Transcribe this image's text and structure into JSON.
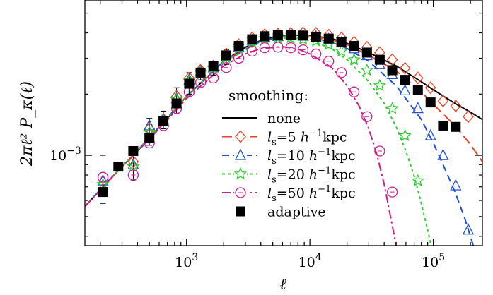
{
  "chart_data": {
    "type": "line",
    "xlabel": "ℓ",
    "ylabel": "2πℓ² P_κ(ℓ)",
    "xscale": "log",
    "yscale": "log",
    "xlim": [
      150,
      250000
    ],
    "ylim": [
      0.00036,
      0.0058
    ],
    "x_ticks": [
      {
        "value": 1000,
        "base": "10",
        "exp": "3"
      },
      {
        "value": 10000,
        "base": "10",
        "exp": "4"
      },
      {
        "value": 100000,
        "base": "10",
        "exp": "5"
      }
    ],
    "y_ticks": [
      {
        "value": 0.001,
        "base": "10",
        "exp": "−3"
      }
    ],
    "legend": {
      "title": "smoothing:",
      "position": "center-right",
      "entries": [
        {
          "series": "none",
          "label": "none"
        },
        {
          "series": "ls5",
          "label": "=5",
          "units": "kpc"
        },
        {
          "series": "ls10",
          "label": "=10",
          "units": "kpc"
        },
        {
          "series": "ls20",
          "label": "=20",
          "units": "kpc"
        },
        {
          "series": "ls50",
          "label": "=50",
          "units": "kpc"
        },
        {
          "series": "adaptive",
          "label": "adaptive"
        }
      ]
    },
    "curves": [
      {
        "key": "none",
        "color": "#000000",
        "dash": "",
        "width": 2,
        "points": [
          [
            150,
            0.00056
          ],
          [
            210,
            0.0007
          ],
          [
            300,
            0.00088
          ],
          [
            400,
            0.00105
          ],
          [
            500,
            0.00122
          ],
          [
            700,
            0.00152
          ],
          [
            1000,
            0.00195
          ],
          [
            1500,
            0.00245
          ],
          [
            2000,
            0.0029
          ],
          [
            3000,
            0.0034
          ],
          [
            4000,
            0.00367
          ],
          [
            5000,
            0.0038
          ],
          [
            6000,
            0.00387
          ],
          [
            8000,
            0.0039
          ],
          [
            10000,
            0.00388
          ],
          [
            15000,
            0.00375
          ],
          [
            20000,
            0.00355
          ],
          [
            30000,
            0.0032
          ],
          [
            50000,
            0.00275
          ],
          [
            80000,
            0.0023
          ],
          [
            100000,
            0.0021
          ],
          [
            150000,
            0.0018
          ],
          [
            200000,
            0.00163
          ],
          [
            250000,
            0.0015
          ]
        ]
      },
      {
        "key": "ls5",
        "color": "#e8421e",
        "dash": "14,6",
        "width": 2,
        "points": [
          [
            150,
            0.00056
          ],
          [
            300,
            0.00088
          ],
          [
            500,
            0.00122
          ],
          [
            1000,
            0.00195
          ],
          [
            2000,
            0.0029
          ],
          [
            4000,
            0.00365
          ],
          [
            6000,
            0.00386
          ],
          [
            8000,
            0.00389
          ],
          [
            10000,
            0.00386
          ],
          [
            15000,
            0.0037
          ],
          [
            20000,
            0.0035
          ],
          [
            30000,
            0.0031
          ],
          [
            50000,
            0.0026
          ],
          [
            80000,
            0.00205
          ],
          [
            100000,
            0.00178
          ],
          [
            150000,
            0.0014
          ],
          [
            200000,
            0.00113
          ],
          [
            250000,
            0.00093
          ]
        ]
      },
      {
        "key": "ls10",
        "color": "#1f4fd1",
        "dash": "10,6",
        "width": 2,
        "points": [
          [
            150,
            0.00056
          ],
          [
            300,
            0.00088
          ],
          [
            500,
            0.00122
          ],
          [
            1000,
            0.00195
          ],
          [
            2000,
            0.0029
          ],
          [
            4000,
            0.00364
          ],
          [
            6000,
            0.00384
          ],
          [
            8000,
            0.00386
          ],
          [
            10000,
            0.0038
          ],
          [
            15000,
            0.0036
          ],
          [
            20000,
            0.00335
          ],
          [
            30000,
            0.0029
          ],
          [
            50000,
            0.0022
          ],
          [
            80000,
            0.0015
          ],
          [
            100000,
            0.00115
          ],
          [
            120000,
            0.0009
          ],
          [
            150000,
            0.00066
          ],
          [
            180000,
            0.00049
          ],
          [
            200000,
            0.0004
          ],
          [
            230000,
            0.0003
          ]
        ]
      },
      {
        "key": "ls20",
        "color": "#2ecc2e",
        "dash": "4,4",
        "width": 2,
        "points": [
          [
            150,
            0.00056
          ],
          [
            300,
            0.00088
          ],
          [
            500,
            0.00122
          ],
          [
            1000,
            0.00195
          ],
          [
            2000,
            0.00288
          ],
          [
            4000,
            0.0036
          ],
          [
            6000,
            0.00377
          ],
          [
            8000,
            0.00375
          ],
          [
            10000,
            0.00367
          ],
          [
            15000,
            0.00335
          ],
          [
            20000,
            0.00295
          ],
          [
            30000,
            0.0023
          ],
          [
            40000,
            0.0018
          ],
          [
            50000,
            0.00138
          ],
          [
            60000,
            0.00105
          ],
          [
            70000,
            0.00079
          ],
          [
            80000,
            0.00058
          ],
          [
            90000,
            0.00043
          ],
          [
            100000,
            0.00032
          ]
        ]
      },
      {
        "key": "ls50",
        "color": "#d11a8c",
        "dash": "12,4,3,4",
        "width": 2,
        "points": [
          [
            150,
            0.00056
          ],
          [
            300,
            0.00088
          ],
          [
            500,
            0.0012
          ],
          [
            1000,
            0.0019
          ],
          [
            2000,
            0.00275
          ],
          [
            3000,
            0.00315
          ],
          [
            4000,
            0.00335
          ],
          [
            6000,
            0.00342
          ],
          [
            8000,
            0.00333
          ],
          [
            10000,
            0.00315
          ],
          [
            15000,
            0.0027
          ],
          [
            20000,
            0.0022
          ],
          [
            25000,
            0.00175
          ],
          [
            30000,
            0.00135
          ],
          [
            35000,
            0.001
          ],
          [
            40000,
            0.00072
          ],
          [
            45000,
            0.0005
          ],
          [
            50000,
            0.00036
          ]
        ]
      }
    ],
    "markers": [
      {
        "key": "ls5",
        "shape": "diamond",
        "color": "#e8421e",
        "points": [
          [
            210,
            0.00068
          ],
          [
            370,
            0.00093
          ],
          [
            500,
            0.00135
          ],
          [
            650,
            0.0015
          ],
          [
            830,
            0.00195
          ],
          [
            1050,
            0.0024
          ],
          [
            1300,
            0.00262
          ],
          [
            1650,
            0.00275
          ],
          [
            2100,
            0.00315
          ],
          [
            2650,
            0.0035
          ],
          [
            3400,
            0.00378
          ],
          [
            4300,
            0.00392
          ],
          [
            5500,
            0.00395
          ],
          [
            7000,
            0.00398
          ],
          [
            8800,
            0.004
          ],
          [
            11200,
            0.00398
          ],
          [
            14200,
            0.0039
          ],
          [
            18000,
            0.00378
          ],
          [
            22800,
            0.0036
          ],
          [
            29000,
            0.0034
          ],
          [
            36800,
            0.0032
          ],
          [
            46500,
            0.00295
          ],
          [
            59000,
            0.00268
          ],
          [
            75000,
            0.0024
          ],
          [
            95000,
            0.00215
          ],
          [
            120000,
            0.00185
          ],
          [
            152000,
            0.00175
          ],
          [
            192000,
            0.00155
          ]
        ]
      },
      {
        "key": "ls10",
        "shape": "triangle",
        "color": "#1f4fd1",
        "points": [
          [
            210,
            0.00075
          ],
          [
            370,
            0.0009
          ],
          [
            500,
            0.0014
          ],
          [
            650,
            0.0015
          ],
          [
            830,
            0.0019
          ],
          [
            1050,
            0.00235
          ],
          [
            1300,
            0.00258
          ],
          [
            1650,
            0.0027
          ],
          [
            2100,
            0.00305
          ],
          [
            2650,
            0.0034
          ],
          [
            3400,
            0.00368
          ],
          [
            4300,
            0.00382
          ],
          [
            5500,
            0.00385
          ],
          [
            7000,
            0.00388
          ],
          [
            8800,
            0.00387
          ],
          [
            11200,
            0.00383
          ],
          [
            14200,
            0.00372
          ],
          [
            18000,
            0.00358
          ],
          [
            22800,
            0.00335
          ],
          [
            29000,
            0.0031
          ],
          [
            36800,
            0.0028
          ],
          [
            46500,
            0.0025
          ],
          [
            59000,
            0.00208
          ],
          [
            75000,
            0.0017
          ],
          [
            95000,
            0.00125
          ],
          [
            120000,
            0.001
          ],
          [
            152000,
            0.00071
          ],
          [
            192000,
            0.00043
          ]
        ]
      },
      {
        "key": "ls20",
        "shape": "star",
        "color": "#2ecc2e",
        "points": [
          [
            210,
            0.00072
          ],
          [
            370,
            0.00088
          ],
          [
            500,
            0.0013
          ],
          [
            650,
            0.00148
          ],
          [
            830,
            0.00188
          ],
          [
            1050,
            0.00232
          ],
          [
            1300,
            0.00255
          ],
          [
            1650,
            0.00268
          ],
          [
            2100,
            0.00302
          ],
          [
            2650,
            0.00335
          ],
          [
            3400,
            0.00362
          ],
          [
            4300,
            0.00375
          ],
          [
            5500,
            0.00378
          ],
          [
            7000,
            0.00378
          ],
          [
            8800,
            0.00372
          ],
          [
            11200,
            0.00365
          ],
          [
            14200,
            0.0035
          ],
          [
            18000,
            0.00325
          ],
          [
            22800,
            0.00295
          ],
          [
            29000,
            0.00262
          ],
          [
            36800,
            0.0022
          ],
          [
            46500,
            0.0017
          ],
          [
            59000,
            0.00125
          ],
          [
            75000,
            0.00075
          ]
        ]
      },
      {
        "key": "ls50",
        "shape": "circle",
        "color": "#d11a8c",
        "points": [
          [
            210,
            0.00078
          ],
          [
            370,
            0.0008
          ],
          [
            500,
            0.00115
          ],
          [
            650,
            0.0014
          ],
          [
            830,
            0.0017
          ],
          [
            1050,
            0.00205
          ],
          [
            1300,
            0.00228
          ],
          [
            1650,
            0.0024
          ],
          [
            2100,
            0.0027
          ],
          [
            2650,
            0.003
          ],
          [
            3400,
            0.00325
          ],
          [
            4300,
            0.00338
          ],
          [
            5500,
            0.0034
          ],
          [
            7000,
            0.00338
          ],
          [
            8800,
            0.0033
          ],
          [
            11200,
            0.00315
          ],
          [
            14200,
            0.0029
          ],
          [
            18000,
            0.00255
          ],
          [
            22800,
            0.00205
          ],
          [
            29000,
            0.00155
          ],
          [
            36800,
            0.00105
          ],
          [
            46500,
            0.00066
          ]
        ]
      },
      {
        "key": "adaptive",
        "shape": "square",
        "color": "#000000",
        "points": [
          [
            210,
            0.00066
          ],
          [
            280,
            0.00088
          ],
          [
            370,
            0.00105
          ],
          [
            500,
            0.00122
          ],
          [
            650,
            0.00148
          ],
          [
            830,
            0.0018
          ],
          [
            1050,
            0.00225
          ],
          [
            1300,
            0.00255
          ],
          [
            1650,
            0.00275
          ],
          [
            2100,
            0.0031
          ],
          [
            2650,
            0.00345
          ],
          [
            3400,
            0.00372
          ],
          [
            4300,
            0.00385
          ],
          [
            5500,
            0.0039
          ],
          [
            7000,
            0.0039
          ],
          [
            8800,
            0.00388
          ],
          [
            11200,
            0.00383
          ],
          [
            14200,
            0.00375
          ],
          [
            18000,
            0.00362
          ],
          [
            22800,
            0.00345
          ],
          [
            29000,
            0.0032
          ],
          [
            36800,
            0.00295
          ],
          [
            46500,
            0.00262
          ],
          [
            59000,
            0.00235
          ],
          [
            75000,
            0.0021
          ],
          [
            95000,
            0.00182
          ],
          [
            120000,
            0.0014
          ],
          [
            152000,
            0.00138
          ]
        ]
      }
    ],
    "error_bars": [
      {
        "x": 210,
        "lo": 0.00058,
        "hi": 0.001
      },
      {
        "x": 370,
        "lo": 0.00075,
        "hi": 0.00108
      },
      {
        "x": 500,
        "lo": 0.00112,
        "hi": 0.00152
      },
      {
        "x": 650,
        "lo": 0.00135,
        "hi": 0.00165
      },
      {
        "x": 830,
        "lo": 0.0016,
        "hi": 0.00215
      },
      {
        "x": 1050,
        "lo": 0.002,
        "hi": 0.00255
      },
      {
        "x": 1300,
        "lo": 0.00235,
        "hi": 0.00275
      },
      {
        "x": 1650,
        "lo": 0.00248,
        "hi": 0.0029
      },
      {
        "x": 2100,
        "lo": 0.0028,
        "hi": 0.0033
      }
    ]
  }
}
